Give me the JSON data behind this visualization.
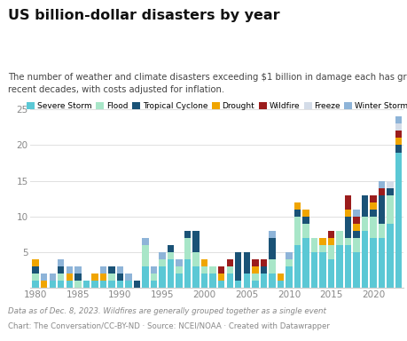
{
  "title": "US billion-dollar disasters by year",
  "subtitle": "The number of weather and climate disasters exceeding $1 billion in damage each has grow in\nrecent decades, with costs adjusted for inflation.",
  "footer1": "Data as of Dec. 8, 2023. Wildfires are generally grouped together as a single event",
  "footer2": "Chart: The Conversation/CC-BY-ND · Source: NCEI/NOAA · Created with Datawrapper",
  "years": [
    1980,
    1981,
    1982,
    1983,
    1984,
    1985,
    1986,
    1987,
    1988,
    1989,
    1990,
    1991,
    1992,
    1993,
    1994,
    1995,
    1996,
    1997,
    1998,
    1999,
    2000,
    2001,
    2002,
    2003,
    2004,
    2005,
    2006,
    2007,
    2008,
    2009,
    2010,
    2011,
    2012,
    2013,
    2014,
    2015,
    2016,
    2017,
    2018,
    2019,
    2020,
    2021,
    2022,
    2023
  ],
  "severe_storm": [
    1,
    0,
    1,
    1,
    1,
    0,
    1,
    1,
    1,
    1,
    1,
    1,
    0,
    3,
    1,
    3,
    4,
    2,
    4,
    3,
    2,
    2,
    1,
    2,
    1,
    2,
    1,
    2,
    2,
    1,
    3,
    6,
    7,
    5,
    5,
    4,
    6,
    6,
    5,
    8,
    7,
    7,
    9,
    19
  ],
  "flood": [
    1,
    0,
    0,
    1,
    0,
    1,
    0,
    0,
    0,
    1,
    0,
    0,
    0,
    3,
    1,
    1,
    1,
    1,
    3,
    2,
    1,
    1,
    0,
    1,
    0,
    0,
    1,
    0,
    2,
    0,
    1,
    4,
    2,
    2,
    1,
    2,
    2,
    1,
    2,
    2,
    3,
    2,
    4,
    0
  ],
  "tropical": [
    1,
    0,
    0,
    1,
    0,
    1,
    0,
    0,
    0,
    1,
    1,
    0,
    1,
    0,
    0,
    0,
    1,
    0,
    1,
    3,
    0,
    0,
    0,
    0,
    4,
    3,
    0,
    1,
    3,
    0,
    0,
    1,
    1,
    0,
    0,
    0,
    0,
    3,
    1,
    3,
    1,
    4,
    1,
    1
  ],
  "drought": [
    1,
    1,
    0,
    0,
    1,
    0,
    0,
    1,
    1,
    0,
    0,
    0,
    0,
    0,
    0,
    0,
    0,
    0,
    0,
    0,
    1,
    0,
    1,
    0,
    0,
    0,
    1,
    0,
    0,
    1,
    0,
    1,
    1,
    0,
    1,
    1,
    0,
    1,
    1,
    0,
    1,
    0,
    0,
    1
  ],
  "wildfire": [
    0,
    0,
    0,
    0,
    0,
    0,
    0,
    0,
    0,
    0,
    0,
    0,
    0,
    0,
    0,
    0,
    0,
    0,
    0,
    0,
    0,
    0,
    1,
    1,
    0,
    0,
    1,
    1,
    0,
    0,
    0,
    0,
    0,
    0,
    0,
    1,
    0,
    2,
    1,
    0,
    1,
    1,
    0,
    1
  ],
  "freeze": [
    0,
    0,
    0,
    0,
    0,
    0,
    0,
    0,
    0,
    0,
    0,
    0,
    0,
    0,
    0,
    0,
    0,
    0,
    0,
    0,
    0,
    0,
    0,
    0,
    0,
    0,
    0,
    0,
    0,
    0,
    0,
    0,
    0,
    0,
    0,
    0,
    0,
    0,
    0,
    0,
    0,
    0,
    1,
    1
  ],
  "winter_storm": [
    0,
    1,
    1,
    1,
    1,
    1,
    0,
    0,
    1,
    0,
    1,
    1,
    0,
    1,
    1,
    1,
    0,
    1,
    0,
    0,
    0,
    0,
    0,
    0,
    0,
    0,
    0,
    0,
    1,
    0,
    1,
    0,
    0,
    0,
    0,
    0,
    0,
    0,
    1,
    0,
    0,
    1,
    0,
    1
  ],
  "colors": {
    "severe_storm": "#5bc8d5",
    "flood": "#a8e6c8",
    "tropical": "#1a5276",
    "drought": "#f0a500",
    "wildfire": "#9b1c1c",
    "freeze": "#d4dce8",
    "winter_storm": "#8eb4d8"
  },
  "legend_labels": [
    "Severe Storm",
    "Flood",
    "Tropical Cyclone",
    "Drought",
    "Wildfire",
    "Freeze",
    "Winter Storm"
  ],
  "ylim": [
    0,
    26
  ],
  "yticks": [
    5,
    10,
    15,
    20,
    25
  ],
  "background_color": "#ffffff",
  "title_fontsize": 11.5,
  "subtitle_fontsize": 7.2,
  "legend_fontsize": 6.5,
  "footer_fontsize": 6.2,
  "tick_fontsize": 7.5
}
